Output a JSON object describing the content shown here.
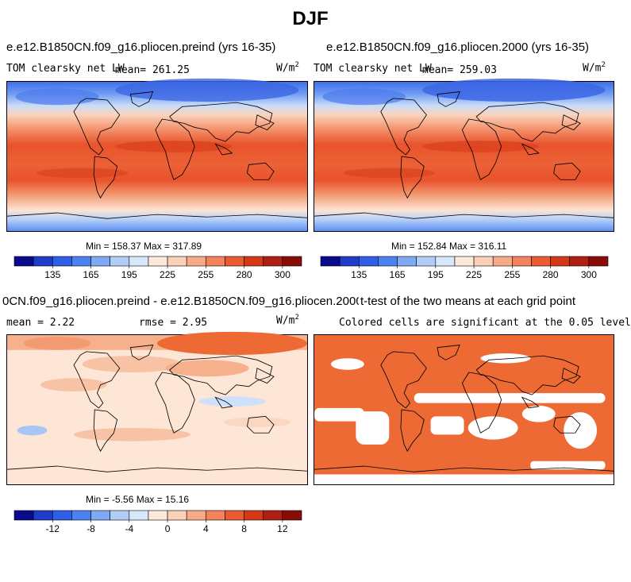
{
  "page": {
    "title": "DJF"
  },
  "chart_data": [
    {
      "type": "heatmap",
      "title": "e.e12.B1850CN.f09_g16.pliocen.preind (yrs 16-35)",
      "variable_label": "TOM clearsky net LW",
      "mean_label": "mean= 261.25",
      "units": "W/m",
      "units_exp": "2",
      "min_max_label": "Min = 158.37 Max = 317.89",
      "min": 158.37,
      "max": 317.89,
      "mean": 261.25,
      "colorbar": {
        "ticks": [
          "135",
          "165",
          "195",
          "225",
          "255",
          "280",
          "300"
        ],
        "colors": [
          "#0a0a8c",
          "#1e3cc8",
          "#2e5fe6",
          "#4a82f0",
          "#7fa9f5",
          "#b0cdf8",
          "#d8e8fb",
          "#fde9dc",
          "#fbcfb6",
          "#f7aa87",
          "#f2835c",
          "#ec5a2f",
          "#d43a17",
          "#b02010",
          "#8a0c06"
        ]
      }
    },
    {
      "type": "heatmap",
      "title": "e.e12.B1850CN.f09_g16.pliocen.2000 (yrs 16-35)",
      "variable_label": "TOM clearsky net LW",
      "mean_label": "mean= 259.03",
      "units": "W/m",
      "units_exp": "2",
      "min_max_label": "Min = 152.84 Max = 316.11",
      "min": 152.84,
      "max": 316.11,
      "mean": 259.03,
      "colorbar": {
        "ticks": [
          "135",
          "165",
          "195",
          "225",
          "255",
          "280",
          "300"
        ],
        "colors": [
          "#0a0a8c",
          "#1e3cc8",
          "#2e5fe6",
          "#4a82f0",
          "#7fa9f5",
          "#b0cdf8",
          "#d8e8fb",
          "#fde9dc",
          "#fbcfb6",
          "#f7aa87",
          "#f2835c",
          "#ec5a2f",
          "#d43a17",
          "#b02010",
          "#8a0c06"
        ]
      }
    },
    {
      "type": "heatmap",
      "title": "0CN.f09_g16.pliocen.preind - e.e12.B1850CN.f09_g16.pliocen.2000",
      "mean_label": "mean =    2.22",
      "rmse_label": "rmse =    2.95",
      "units": "W/m",
      "units_exp": "2",
      "min_max_label": "Min =  -5.56 Max =  15.16",
      "min": -5.56,
      "max": 15.16,
      "mean": 2.22,
      "rmse": 2.95,
      "colorbar": {
        "ticks": [
          "-12",
          "-8",
          "-4",
          "0",
          "4",
          "8",
          "12"
        ],
        "colors": [
          "#0a0a8c",
          "#1e3cc8",
          "#2e5fe6",
          "#4a82f0",
          "#7fa9f5",
          "#b0cdf8",
          "#d8e8fb",
          "#fde9dc",
          "#fbcfb6",
          "#f7aa87",
          "#f2835c",
          "#ec5a2f",
          "#d43a17",
          "#b02010",
          "#8a0c06"
        ]
      }
    },
    {
      "type": "heatmap",
      "title": "t-test of the two means at each grid point",
      "subtitle": "Colored cells are significant at the 0.05 level",
      "significant_color": "#ee6a35"
    }
  ]
}
